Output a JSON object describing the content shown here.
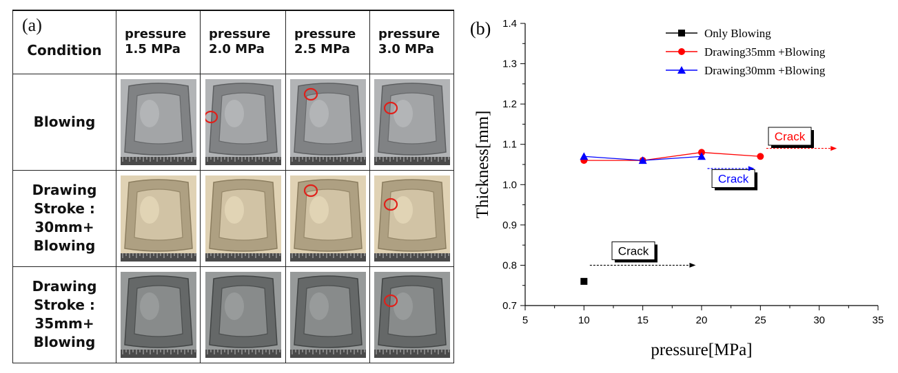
{
  "panel_a": {
    "label": "(a)",
    "condition_header": "Condition",
    "pressure_headers": [
      {
        "line1": "pressure",
        "line2": "1.5 MPa"
      },
      {
        "line1": "pressure",
        "line2": "2.0 MPa"
      },
      {
        "line1": "pressure",
        "line2": "2.5 MPa"
      },
      {
        "line1": "pressure",
        "line2": "3.0 MPa"
      }
    ],
    "rows": [
      {
        "label_lines": [
          "Blowing"
        ],
        "photo_tone": "#8a8c8e",
        "crack_marked": [
          false,
          true,
          true,
          true
        ]
      },
      {
        "label_lines": [
          "Drawing",
          "Stroke :",
          "30mm+",
          "Blowing"
        ],
        "photo_tone": "#b8aa8c",
        "crack_marked": [
          false,
          false,
          true,
          true
        ]
      },
      {
        "label_lines": [
          "Drawing",
          "Stroke :",
          "35mm+",
          "Blowing"
        ],
        "photo_tone": "#6f7272",
        "crack_marked": [
          false,
          false,
          false,
          true
        ]
      }
    ],
    "crack_marker_color": "#e0201a"
  },
  "chart_data": {
    "panel_label": "(b)",
    "type": "line",
    "xlabel": "pressure[MPa]",
    "ylabel": "Thickness[mm]",
    "xlim": [
      5,
      35
    ],
    "ylim": [
      0.7,
      1.4
    ],
    "xticks": [
      5,
      10,
      15,
      20,
      25,
      30,
      35
    ],
    "yticks": [
      0.7,
      0.8,
      0.9,
      1.0,
      1.1,
      1.2,
      1.3,
      1.4
    ],
    "xtick_labels": [
      "5",
      "10",
      "15",
      "20",
      "25",
      "30",
      "35"
    ],
    "ytick_labels": [
      "0.7",
      "0.8",
      "0.9",
      "1.0",
      "1.1",
      "1.2",
      "1.3",
      "1.4"
    ],
    "legend_position": "top-right",
    "series": [
      {
        "name": "Only Blowing",
        "color": "#000000",
        "marker": "square",
        "x": [
          10
        ],
        "y": [
          0.76
        ]
      },
      {
        "name": "Drawing35mm +Blowing",
        "color": "#ff0000",
        "marker": "circle",
        "x": [
          10,
          15,
          20,
          25
        ],
        "y": [
          1.06,
          1.06,
          1.08,
          1.07
        ]
      },
      {
        "name": "Drawing30mm +Blowing",
        "color": "#0000ff",
        "marker": "triangle",
        "x": [
          10,
          15,
          20
        ],
        "y": [
          1.07,
          1.06,
          1.07
        ]
      }
    ],
    "annotations": [
      {
        "text": "Crack",
        "color": "#ff0000",
        "box_x": 27.5,
        "box_y": 1.12,
        "arrow_from": [
          25.5,
          1.09
        ],
        "arrow_to": [
          31.5,
          1.09
        ]
      },
      {
        "text": "Crack",
        "color": "#0000ff",
        "box_x": 22.7,
        "box_y": 1.015,
        "arrow_from": [
          20.5,
          1.04
        ],
        "arrow_to": [
          24.5,
          1.04
        ]
      },
      {
        "text": "Crack",
        "color": "#000000",
        "box_x": 14.2,
        "box_y": 0.836,
        "arrow_from": [
          10.5,
          0.8
        ],
        "arrow_to": [
          19.5,
          0.8
        ]
      }
    ]
  }
}
